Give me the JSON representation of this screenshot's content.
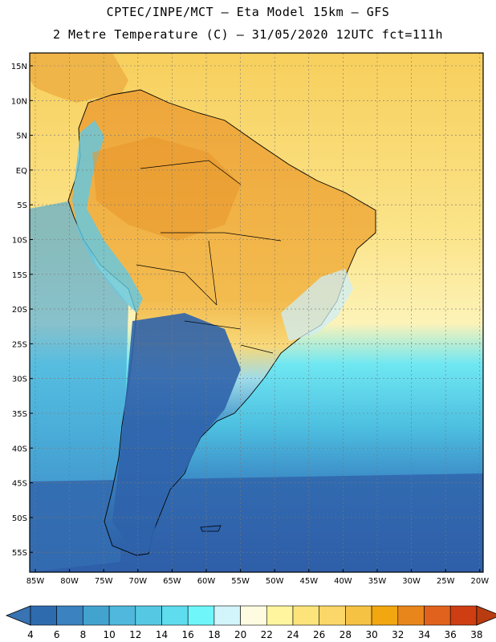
{
  "header": {
    "line1": "CPTEC/INPE/MCT –  Eta Model 15km – GFS",
    "line2": "2 Metre Temperature (C) – 31/05/2020 12UTC fct=111h"
  },
  "map": {
    "lat_labels": [
      "15N",
      "10N",
      "5N",
      "EQ",
      "5S",
      "10S",
      "15S",
      "20S",
      "25S",
      "30S",
      "35S",
      "40S",
      "45S",
      "50S",
      "55S"
    ],
    "lon_labels": [
      "85W",
      "80W",
      "75W",
      "70W",
      "65W",
      "60W",
      "55W",
      "50W",
      "45W",
      "40W",
      "35W",
      "30W",
      "25W",
      "20W"
    ]
  },
  "colorbar": {
    "ticks": [
      "4",
      "6",
      "8",
      "10",
      "12",
      "14",
      "16",
      "18",
      "20",
      "22",
      "24",
      "26",
      "28",
      "30",
      "32",
      "34",
      "36",
      "38"
    ],
    "colors": [
      "#2e6aae",
      "#3a82c0",
      "#43a3cf",
      "#4fb8dc",
      "#55c9e4",
      "#5fdcee",
      "#6ef6fb",
      "#d2f4fb",
      "#fffbe0",
      "#fef59e",
      "#fde47a",
      "#fbd668",
      "#f5c243",
      "#f2a60f",
      "#e8861b",
      "#e0621c",
      "#ce3e12"
    ],
    "low_color": "#3873b3",
    "high_color": "#b83c10"
  },
  "colors": {
    "ocean_cold": "#2f5fa8",
    "ocean_mid": "#4ab9da",
    "ocean_warm": "#f7d46a",
    "land_warm": "#f0b348",
    "land_cold": "#2e62aa"
  }
}
